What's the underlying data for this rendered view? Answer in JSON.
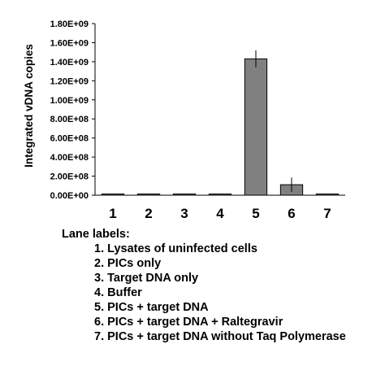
{
  "chart_data": {
    "type": "bar",
    "categories": [
      "1",
      "2",
      "3",
      "4",
      "5",
      "6",
      "7"
    ],
    "values": [
      8000000,
      8000000,
      8000000,
      8000000,
      1430000000,
      110000000,
      8000000
    ],
    "error_bars": [
      0,
      0,
      0,
      0,
      90000000,
      75000000,
      0
    ],
    "ylabel": "Integrated vDNA copies",
    "xlabel": "",
    "ylim": [
      0,
      1800000000
    ],
    "yticks": [
      "0.00E+00",
      "2.00E+08",
      "4.00E+08",
      "6.00E+08",
      "8.00E+08",
      "1.00E+09",
      "1.20E+09",
      "1.40E+09",
      "1.60E+09",
      "1.80E+09"
    ],
    "grid": false,
    "bar_color": "#808080",
    "bar_edge_color": "#000000"
  },
  "legend": {
    "title": "Lane labels:",
    "items": [
      "1. Lysates of uninfected cells",
      "2. PICs only",
      "3. Target DNA only",
      "4. Buffer",
      "5. PICs + target DNA",
      "6. PICs + target DNA + Raltegravir",
      "7. PICs + target DNA without Taq Polymerase"
    ]
  }
}
